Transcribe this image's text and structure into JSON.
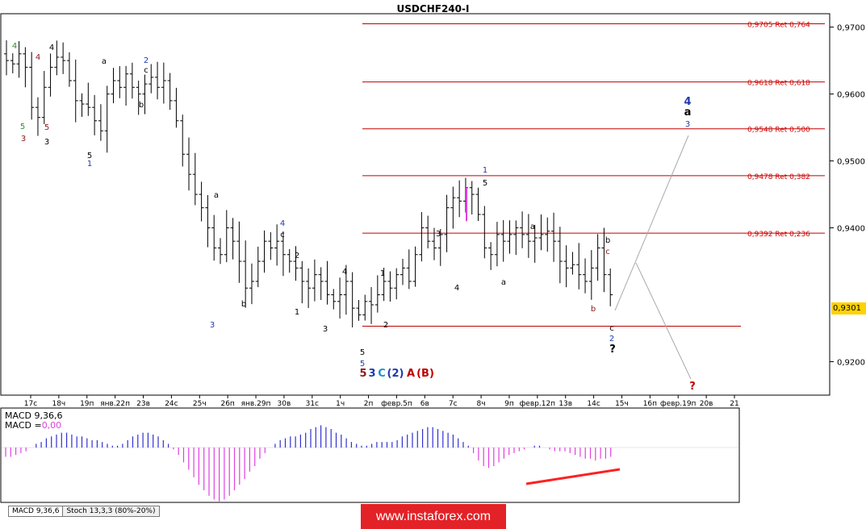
{
  "window_title": "USDCHF240-I",
  "current_price": "0,9301",
  "indicator": {
    "macd_name": "MACD 9,36,6",
    "macd_value_prefix": "MACD =",
    "macd_value": "0,00"
  },
  "tabs": [
    "MACD 9,36,6",
    "Stoch 13,3,3 (80%-20%)"
  ],
  "banner_text": "www.instaforex.com",
  "colors": {
    "candle": "#000000",
    "fib_line": "#c00000",
    "fib_label": "#d00000",
    "macd_pos": "#3030d0",
    "macd_neg": "#e040e0",
    "divergence": "#ff2020",
    "projection": "#aaaaaa",
    "price_tag": "#ffd200",
    "wave_black": "#000000",
    "wave_blue": "#1e3ab0",
    "wave_green": "#2e8b2e",
    "wave_darkred": "#8b1a1a",
    "wave_cyan": "#1e90c8",
    "wave_red": "#c00000"
  },
  "chart_data": {
    "type": "candlestick",
    "symbol": "USDCHF240-I",
    "ylim": [
      0.915,
      0.972
    ],
    "y_ticks": [
      "0,9700",
      "0,9600",
      "0,9500",
      "0,9400",
      "0,9200"
    ],
    "x_ticks": [
      "17с",
      "18ч",
      "19п",
      "янв.22п",
      "23в",
      "24с",
      "25ч",
      "26п",
      "янв.29п",
      "30в",
      "31с",
      "1ч",
      "2п",
      "февр.5п",
      "6в",
      "7с",
      "8ч",
      "9п",
      "февр.12п",
      "13в",
      "14с",
      "15ч",
      "16п",
      "февр.19п",
      "20в",
      "21"
    ],
    "fib_levels": [
      {
        "price": 0.9705,
        "label": "0,9705 Ret 0,764"
      },
      {
        "price": 0.9618,
        "label": "0,9618 Ret 0,618"
      },
      {
        "price": 0.9548,
        "label": "0,9548 Ret 0,500"
      },
      {
        "price": 0.9478,
        "label": "0,9478 Ret 0,382"
      },
      {
        "price": 0.9392,
        "label": "0,9392 Ret 0,236"
      }
    ],
    "support_level": 0.9253,
    "close_series": [
      0.965,
      0.9645,
      0.966,
      0.964,
      0.958,
      0.9565,
      0.961,
      0.964,
      0.9655,
      0.965,
      0.962,
      0.959,
      0.9585,
      0.958,
      0.956,
      0.9545,
      0.96,
      0.962,
      0.961,
      0.963,
      0.961,
      0.96,
      0.9615,
      0.9625,
      0.961,
      0.962,
      0.959,
      0.956,
      0.951,
      0.948,
      0.945,
      0.943,
      0.94,
      0.937,
      0.936,
      0.94,
      0.938,
      0.935,
      0.931,
      0.932,
      0.935,
      0.938,
      0.937,
      0.938,
      0.936,
      0.935,
      0.934,
      0.932,
      0.931,
      0.933,
      0.932,
      0.93,
      0.929,
      0.93,
      0.932,
      0.928,
      0.927,
      0.929,
      0.9285,
      0.93,
      0.932,
      0.931,
      0.933,
      0.934,
      0.932,
      0.936,
      0.94,
      0.938,
      0.937,
      0.939,
      0.943,
      0.9445,
      0.944,
      0.946,
      0.945,
      0.942,
      0.937,
      0.936,
      0.939,
      0.938,
      0.939,
      0.94,
      0.939,
      0.938,
      0.9385,
      0.939,
      0.9395,
      0.938,
      0.935,
      0.934,
      0.9345,
      0.933,
      0.932,
      0.934,
      0.937,
      0.933,
      0.93
    ],
    "wave_labels": [
      {
        "t": "4",
        "color": "wave_green",
        "bold": false
      },
      {
        "t": "4",
        "color": "wave_darkred",
        "bold": false
      },
      {
        "t": "4",
        "color": "wave_black",
        "bold": false
      },
      {
        "t": "5",
        "color": "wave_green",
        "bold": false
      },
      {
        "t": "3",
        "color": "wave_darkred",
        "bold": false
      },
      {
        "t": "5",
        "color": "wave_darkred",
        "bold": false
      },
      {
        "t": "3",
        "color": "wave_black",
        "bold": false
      },
      {
        "t": "a",
        "color": "wave_black",
        "bold": false
      },
      {
        "t": "2",
        "color": "wave_blue",
        "bold": false
      },
      {
        "t": "c",
        "color": "wave_black",
        "bold": false
      },
      {
        "t": "b",
        "color": "wave_black",
        "bold": false
      },
      {
        "t": "5",
        "color": "wave_black",
        "bold": false
      },
      {
        "t": "1",
        "color": "wave_blue",
        "bold": false
      },
      {
        "t": "a",
        "color": "wave_black",
        "bold": false
      },
      {
        "t": "3",
        "color": "wave_blue",
        "bold": false
      },
      {
        "t": "b",
        "color": "wave_black",
        "bold": false
      },
      {
        "t": "4",
        "color": "wave_blue",
        "bold": false
      },
      {
        "t": "c",
        "color": "wave_black",
        "bold": false
      },
      {
        "t": "2",
        "color": "wave_black",
        "bold": false
      },
      {
        "t": "1",
        "color": "wave_black",
        "bold": false
      },
      {
        "t": "3",
        "color": "wave_black",
        "bold": false
      },
      {
        "t": "4",
        "color": "wave_black",
        "bold": false
      },
      {
        "t": "5",
        "color": "wave_black",
        "bold": false
      },
      {
        "t": "5",
        "color": "wave_blue",
        "bold": false
      },
      {
        "t": "5",
        "color": "wave_darkred",
        "bold": true
      },
      {
        "t": "3",
        "color": "wave_blue",
        "bold": true
      },
      {
        "t": "C",
        "color": "wave_cyan",
        "bold": true
      },
      {
        "t": "(2)",
        "color": "wave_blue",
        "bold": true
      },
      {
        "t": "A",
        "color": "wave_red",
        "bold": true
      },
      {
        "t": "(B)",
        "color": "wave_red",
        "bold": true
      },
      {
        "t": "1",
        "color": "wave_black",
        "bold": false
      },
      {
        "t": "2",
        "color": "wave_black",
        "bold": false
      },
      {
        "t": "3",
        "color": "wave_black",
        "bold": false
      },
      {
        "t": "4",
        "color": "wave_black",
        "bold": false
      },
      {
        "t": "1",
        "color": "wave_blue",
        "bold": false
      },
      {
        "t": "5",
        "color": "wave_black",
        "bold": false
      },
      {
        "t": "a",
        "color": "wave_black",
        "bold": false
      },
      {
        "t": "a",
        "color": "wave_black",
        "bold": false
      },
      {
        "t": "b",
        "color": "wave_black",
        "bold": false
      },
      {
        "t": "c",
        "color": "wave_darkred",
        "bold": false
      },
      {
        "t": "b",
        "color": "wave_darkred",
        "bold": false
      },
      {
        "t": "c",
        "color": "wave_black",
        "bold": false
      },
      {
        "t": "2",
        "color": "wave_blue",
        "bold": false
      },
      {
        "t": "?",
        "color": "wave_black",
        "bold": true
      },
      {
        "t": "4",
        "color": "wave_blue",
        "bold": true
      },
      {
        "t": "a",
        "color": "wave_black",
        "bold": true
      },
      {
        "t": "3",
        "color": "wave_blue",
        "bold": false
      },
      {
        "t": "?",
        "color": "wave_red",
        "bold": true
      }
    ],
    "macd_histogram": [
      -0.5,
      -0.5,
      -0.4,
      -0.3,
      -0.2,
      0.0,
      0.2,
      0.3,
      0.5,
      0.6,
      0.7,
      0.8,
      0.8,
      0.7,
      0.6,
      0.6,
      0.5,
      0.4,
      0.4,
      0.3,
      0.2,
      0.1,
      0.1,
      0.2,
      0.4,
      0.6,
      0.7,
      0.8,
      0.8,
      0.7,
      0.6,
      0.4,
      0.2,
      -0.1,
      -0.4,
      -0.8,
      -1.2,
      -1.6,
      -2.0,
      -2.3,
      -2.6,
      -2.8,
      -2.9,
      -2.8,
      -2.6,
      -2.3,
      -2.0,
      -1.7,
      -1.3,
      -1.0,
      -0.6,
      -0.3,
      0.0,
      0.2,
      0.4,
      0.5,
      0.6,
      0.6,
      0.7,
      0.8,
      1.0,
      1.1,
      1.2,
      1.1,
      1.0,
      0.8,
      0.7,
      0.5,
      0.3,
      0.2,
      0.1,
      0.1,
      0.2,
      0.3,
      0.3,
      0.3,
      0.3,
      0.4,
      0.6,
      0.7,
      0.8,
      0.9,
      1.0,
      1.1,
      1.1,
      1.0,
      0.9,
      0.8,
      0.7,
      0.5,
      0.3,
      0.1,
      -0.3,
      -0.7,
      -1.0,
      -1.1,
      -1.0,
      -0.8,
      -0.6,
      -0.4,
      -0.3,
      -0.2,
      -0.1,
      0.0,
      0.1,
      0.1,
      0.0,
      -0.1,
      -0.2,
      -0.2,
      -0.2,
      -0.3,
      -0.4,
      -0.5,
      -0.6,
      -0.6,
      -0.7,
      -0.6,
      -0.6,
      -0.5
    ]
  }
}
